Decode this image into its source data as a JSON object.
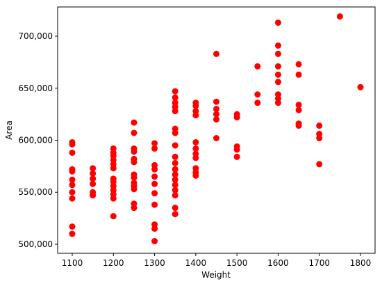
{
  "chart_data": {
    "type": "scatter",
    "x_label": "Weight",
    "y_label": "Area",
    "color": "#ff0000",
    "x": [
      1100,
      1100,
      1100,
      1100,
      1100,
      1100,
      1100,
      1100,
      1100,
      1100,
      1100,
      1150,
      1150,
      1150,
      1150,
      1150,
      1150,
      1200,
      1200,
      1200,
      1200,
      1200,
      1200,
      1200,
      1200,
      1200,
      1200,
      1200,
      1200,
      1200,
      1250,
      1250,
      1250,
      1250,
      1250,
      1250,
      1250,
      1250,
      1250,
      1250,
      1250,
      1250,
      1250,
      1300,
      1300,
      1300,
      1300,
      1300,
      1300,
      1300,
      1300,
      1300,
      1300,
      1300,
      1350,
      1350,
      1350,
      1350,
      1350,
      1350,
      1350,
      1350,
      1350,
      1350,
      1350,
      1350,
      1350,
      1350,
      1350,
      1350,
      1350,
      1350,
      1400,
      1400,
      1400,
      1400,
      1400,
      1400,
      1400,
      1400,
      1400,
      1400,
      1400,
      1450,
      1450,
      1450,
      1450,
      1450,
      1450,
      1500,
      1500,
      1500,
      1500,
      1500,
      1550,
      1550,
      1550,
      1600,
      1600,
      1600,
      1600,
      1600,
      1600,
      1600,
      1600,
      1600,
      1650,
      1650,
      1650,
      1650,
      1650,
      1650,
      1700,
      1700,
      1700,
      1700,
      1750,
      1800
    ],
    "y": [
      598000,
      596000,
      588000,
      572000,
      570000,
      562000,
      557000,
      550000,
      544000,
      517000,
      510000,
      573000,
      568000,
      563000,
      558000,
      550000,
      547000,
      592000,
      588000,
      585000,
      581000,
      577000,
      573000,
      563000,
      560000,
      556000,
      552000,
      548000,
      544000,
      527000,
      617000,
      607000,
      592000,
      589000,
      582000,
      579000,
      567000,
      564000,
      559000,
      556000,
      553000,
      539000,
      535000,
      597000,
      592000,
      576000,
      572000,
      565000,
      558000,
      549000,
      538000,
      519000,
      515000,
      503000,
      647000,
      641000,
      636000,
      632000,
      628000,
      611000,
      607000,
      595000,
      584000,
      578000,
      572000,
      567000,
      562000,
      557000,
      552000,
      547000,
      535000,
      529000,
      636000,
      633000,
      628000,
      624000,
      598000,
      592000,
      587000,
      583000,
      573000,
      569000,
      566000,
      683000,
      637000,
      630000,
      625000,
      620000,
      602000,
      625000,
      622000,
      594000,
      591000,
      584000,
      671000,
      644000,
      636000,
      713000,
      691000,
      683000,
      671000,
      663000,
      656000,
      644000,
      640000,
      636000,
      673000,
      663000,
      634000,
      629000,
      616000,
      614000,
      614000,
      606000,
      602000,
      577000,
      719000,
      651000
    ],
    "xlim": [
      1064.6,
      1835.4
    ],
    "ylim": [
      491300,
      728100
    ],
    "xticks": [
      1100,
      1200,
      1300,
      1400,
      1500,
      1600,
      1700,
      1800
    ],
    "yticks": [
      {
        "value": 500000,
        "label": "500,000"
      },
      {
        "value": 550000,
        "label": "550,000"
      },
      {
        "value": 600000,
        "label": "600,000"
      },
      {
        "value": 650000,
        "label": "650,000"
      },
      {
        "value": 700000,
        "label": "700,000"
      }
    ]
  }
}
